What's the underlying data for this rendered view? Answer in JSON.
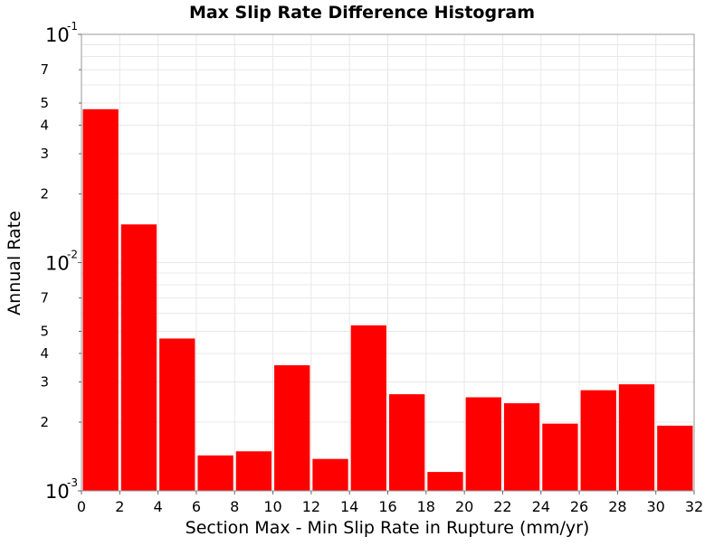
{
  "chart_data": {
    "type": "bar",
    "title": "Max Slip Rate Difference Histogram",
    "xlabel": "Section Max - Min Slip Rate in Rupture (mm/yr)",
    "ylabel": "Annual Rate",
    "y_scale": "log",
    "xlim": [
      0,
      32
    ],
    "ylim": [
      0.001,
      0.1
    ],
    "bin_width": 2,
    "x_ticks": [
      "0",
      "2",
      "4",
      "6",
      "8",
      "10",
      "12",
      "14",
      "16",
      "18",
      "20",
      "22",
      "24",
      "26",
      "28",
      "30",
      "32"
    ],
    "y_decade_ticks": [
      {
        "value": 0.1,
        "base": "10",
        "exp": "-1"
      },
      {
        "value": 0.01,
        "base": "10",
        "exp": "-2"
      },
      {
        "value": 0.001,
        "base": "10",
        "exp": "-3"
      }
    ],
    "y_minor_labels": [
      {
        "value": 0.07,
        "label": "7"
      },
      {
        "value": 0.05,
        "label": "5"
      },
      {
        "value": 0.04,
        "label": "4"
      },
      {
        "value": 0.03,
        "label": "3"
      },
      {
        "value": 0.02,
        "label": "2"
      },
      {
        "value": 0.007,
        "label": "7"
      },
      {
        "value": 0.005,
        "label": "5"
      },
      {
        "value": 0.004,
        "label": "4"
      },
      {
        "value": 0.003,
        "label": "3"
      },
      {
        "value": 0.002,
        "label": "2"
      }
    ],
    "bins": [
      {
        "x": 1,
        "value": 0.047
      },
      {
        "x": 3,
        "value": 0.0147
      },
      {
        "x": 5,
        "value": 0.00465
      },
      {
        "x": 7,
        "value": 0.00143
      },
      {
        "x": 9,
        "value": 0.00149
      },
      {
        "x": 11,
        "value": 0.00355
      },
      {
        "x": 13,
        "value": 0.00138
      },
      {
        "x": 15,
        "value": 0.00531
      },
      {
        "x": 17,
        "value": 0.00265
      },
      {
        "x": 19,
        "value": 0.00121
      },
      {
        "x": 21,
        "value": 0.00257
      },
      {
        "x": 23,
        "value": 0.00242
      },
      {
        "x": 25,
        "value": 0.00197
      },
      {
        "x": 27,
        "value": 0.00276
      },
      {
        "x": 29,
        "value": 0.00293
      },
      {
        "x": 31,
        "value": 0.00193
      }
    ],
    "bar_color": "#ff0000",
    "grid": true,
    "grid_color": "#e8e8e8",
    "legend": "none"
  }
}
